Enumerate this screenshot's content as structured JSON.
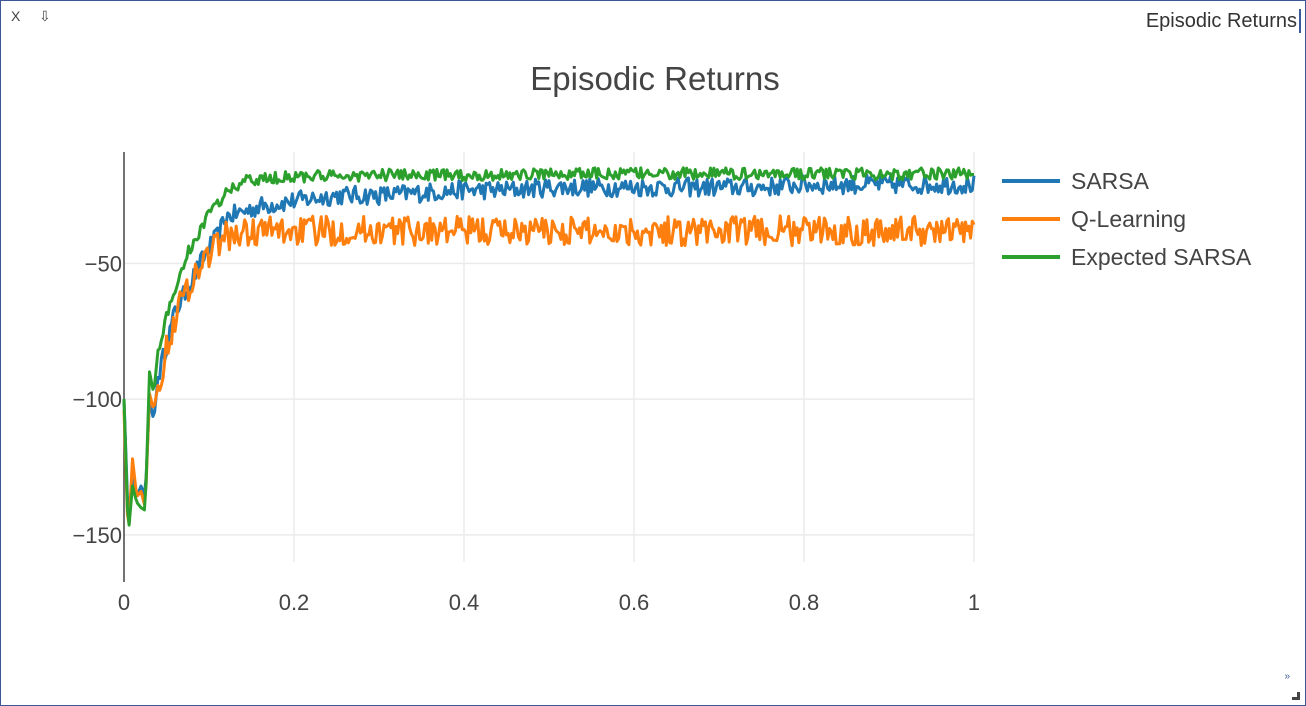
{
  "window": {
    "close_label": "X",
    "collapse_label": "⇩",
    "title": "Episodic Returns",
    "resize_label": "»"
  },
  "chart_data": {
    "type": "line",
    "title": "Episodic Returns",
    "xlabel": "",
    "ylabel": "",
    "xlim": [
      0,
      1
    ],
    "ylim": [
      -160,
      -9
    ],
    "x_ticks": [
      0,
      0.2,
      0.4,
      0.6,
      0.8,
      1
    ],
    "x_tick_labels": [
      "0",
      "0.2",
      "0.4",
      "0.6",
      "0.8",
      "1"
    ],
    "y_ticks": [
      -50,
      -100,
      -150
    ],
    "y_tick_labels": [
      "−50",
      "−100",
      "−150"
    ],
    "grid": true,
    "legend_position": "top-right",
    "series": [
      {
        "name": "SARSA",
        "color": "#1f77b4",
        "x": [
          0,
          0.005,
          0.01,
          0.015,
          0.02,
          0.025,
          0.03,
          0.035,
          0.04,
          0.05,
          0.06,
          0.07,
          0.08,
          0.09,
          0.1,
          0.11,
          0.12,
          0.14,
          0.16,
          0.18,
          0.2,
          0.25,
          0.3,
          0.35,
          0.4,
          0.45,
          0.5,
          0.55,
          0.6,
          0.65,
          0.7,
          0.75,
          0.8,
          0.85,
          0.9,
          0.95,
          1.0
        ],
        "y": [
          -100,
          -145,
          -128,
          -136,
          -132,
          -136,
          -100,
          -108,
          -92,
          -80,
          -68,
          -62,
          -56,
          -50,
          -44,
          -40,
          -33,
          -31,
          -29,
          -28,
          -27,
          -25,
          -25,
          -24,
          -23,
          -23,
          -22,
          -22,
          -22,
          -22,
          -22,
          -22,
          -21,
          -21,
          -21,
          -21,
          -21
        ]
      },
      {
        "name": "Q-Learning",
        "color": "#ff7f0e",
        "x": [
          0,
          0.005,
          0.01,
          0.015,
          0.02,
          0.025,
          0.03,
          0.035,
          0.04,
          0.05,
          0.06,
          0.07,
          0.08,
          0.09,
          0.1,
          0.11,
          0.12,
          0.14,
          0.16,
          0.18,
          0.2,
          0.25,
          0.3,
          0.35,
          0.4,
          0.45,
          0.5,
          0.55,
          0.6,
          0.65,
          0.7,
          0.75,
          0.8,
          0.85,
          0.9,
          0.95,
          1.0
        ],
        "y": [
          -104,
          -152,
          -122,
          -136,
          -134,
          -140,
          -98,
          -104,
          -95,
          -82,
          -70,
          -62,
          -56,
          -51,
          -46,
          -43,
          -40,
          -39,
          -38,
          -38,
          -38,
          -38,
          -38,
          -38,
          -38,
          -38,
          -38,
          -38,
          -38,
          -38,
          -38,
          -38,
          -38,
          -38,
          -38,
          -38,
          -38
        ]
      },
      {
        "name": "Expected SARSA",
        "color": "#2ca02c",
        "x": [
          0,
          0.005,
          0.01,
          0.015,
          0.02,
          0.025,
          0.03,
          0.035,
          0.04,
          0.05,
          0.06,
          0.07,
          0.08,
          0.09,
          0.1,
          0.11,
          0.12,
          0.14,
          0.16,
          0.18,
          0.2,
          0.25,
          0.3,
          0.35,
          0.4,
          0.45,
          0.5,
          0.55,
          0.6,
          0.65,
          0.7,
          0.75,
          0.8,
          0.85,
          0.9,
          0.95,
          1.0
        ],
        "y": [
          -100,
          -150,
          -132,
          -138,
          -140,
          -141,
          -90,
          -98,
          -82,
          -70,
          -60,
          -50,
          -43,
          -38,
          -32,
          -28,
          -24,
          -20,
          -19,
          -18.5,
          -18,
          -18,
          -17.5,
          -17.5,
          -17.5,
          -17.5,
          -17,
          -17,
          -17,
          -17,
          -17,
          -17,
          -17,
          -17,
          -17,
          -17,
          -17
        ]
      }
    ]
  }
}
